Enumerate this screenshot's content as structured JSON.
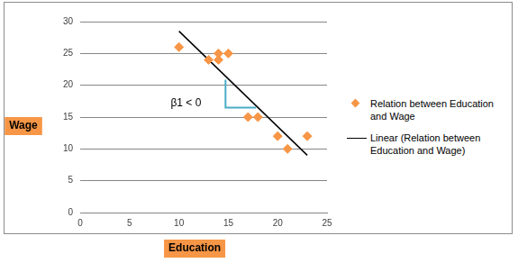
{
  "chart_data": {
    "type": "scatter",
    "x_label": "Education",
    "y_label": "Wage",
    "annotations": [
      {
        "text": "β1 < 0",
        "x": 10.7,
        "y": 17.2
      }
    ],
    "series": [
      {
        "name": "Relation between Education and Wage",
        "type": "scatter",
        "marker": "diamond",
        "color": "#f79646",
        "x": [
          10,
          13,
          14,
          14,
          15,
          17,
          18,
          20,
          21,
          23
        ],
        "values": [
          26,
          24,
          25,
          24,
          25,
          15,
          15,
          12,
          10,
          12
        ]
      },
      {
        "name": "Linear (Relation between Education and Wage)",
        "type": "line",
        "line_style": "solid",
        "color": "#000000",
        "x": [
          10,
          23
        ],
        "values": [
          28.5,
          9
        ]
      }
    ],
    "xlim": [
      0,
      25
    ],
    "xticks": [
      0,
      5,
      10,
      15,
      20,
      25
    ],
    "ylim": [
      0,
      30
    ],
    "yticks": [
      0,
      5,
      10,
      15,
      20,
      25,
      30
    ],
    "grid": "y",
    "legend": "right"
  }
}
